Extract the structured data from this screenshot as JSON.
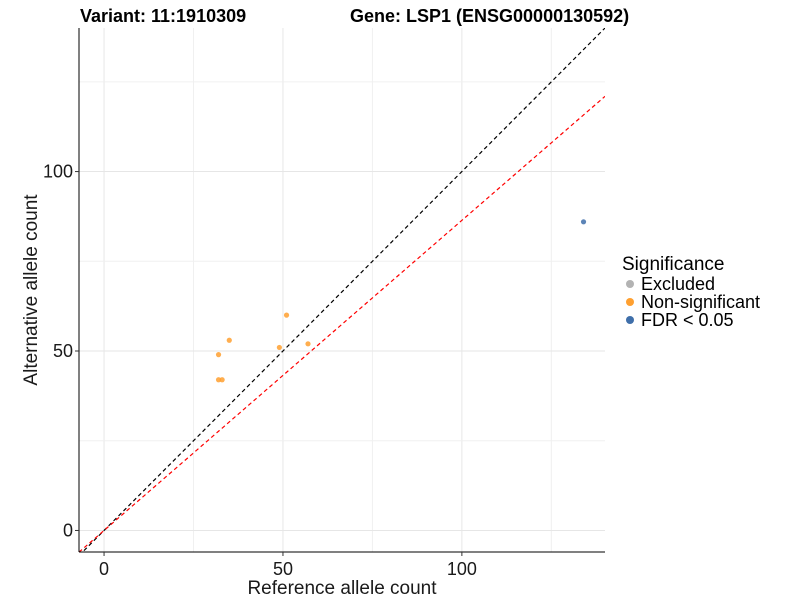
{
  "title_left": "Variant: 11:1910309",
  "title_right": "Gene: LSP1 (ENSG00000130592)",
  "chart_data": {
    "type": "scatter",
    "xlabel": "Reference allele count",
    "ylabel": "Alternative allele count",
    "xlim": [
      -7,
      140
    ],
    "ylim": [
      -6,
      140
    ],
    "x_ticks": [
      0,
      50,
      100
    ],
    "y_ticks": [
      0,
      50,
      100
    ],
    "grid": true,
    "legend_position": "right",
    "legend_title": "Significance",
    "series": [
      {
        "name": "Excluded",
        "color": "#B3B3B3",
        "points": []
      },
      {
        "name": "Non-significant",
        "color": "#FFA030",
        "points": [
          [
            32,
            42
          ],
          [
            33,
            42
          ],
          [
            32,
            49
          ],
          [
            35,
            53
          ],
          [
            49,
            51
          ],
          [
            51,
            60
          ],
          [
            57,
            52
          ]
        ]
      },
      {
        "name": "FDR < 0.05",
        "color": "#3F6FAA",
        "points": [
          [
            134,
            86
          ]
        ]
      }
    ],
    "reference_lines": [
      {
        "style": "dashed",
        "color": "#000000",
        "slope": 1,
        "intercept": 0
      },
      {
        "style": "dashed",
        "color": "#FF0000",
        "slope": 0.864,
        "intercept": 0
      }
    ]
  }
}
